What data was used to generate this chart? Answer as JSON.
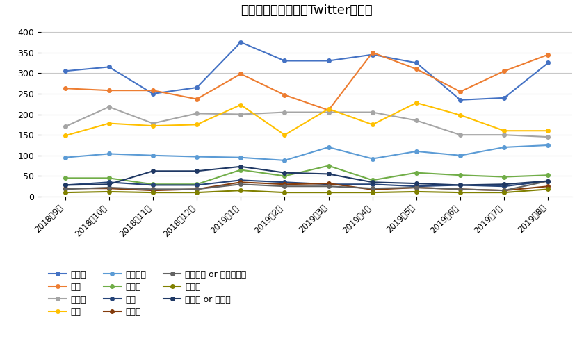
{
  "title": "温泉＋効能に関するTwitter投稿数",
  "x_labels": [
    "2018年9月",
    "2018年10月",
    "2018年11月",
    "2018年12月",
    "2019年1月",
    "2019年2月",
    "2019年3月",
    "2019年4月",
    "2019年5月",
    "2019年6月",
    "2019年7月",
    "2019年8月"
  ],
  "series": [
    {
      "name": "筋肉痛",
      "color": "#4472C4",
      "values": [
        305,
        315,
        250,
        265,
        375,
        330,
        330,
        345,
        325,
        235,
        240,
        325
      ]
    },
    {
      "name": "美肌",
      "color": "#ED7D31",
      "values": [
        263,
        258,
        258,
        237,
        298,
        247,
        210,
        350,
        310,
        255,
        305,
        345
      ]
    },
    {
      "name": "肩こり",
      "color": "#A5A5A5",
      "values": [
        170,
        218,
        178,
        202,
        200,
        205,
        205,
        205,
        185,
        150,
        150,
        145
      ]
    },
    {
      "name": "腰痛",
      "color": "#FFC000",
      "values": [
        148,
        178,
        172,
        175,
        223,
        150,
        213,
        175,
        228,
        198,
        160,
        160
      ]
    },
    {
      "name": "疲労回復",
      "color": "#5B9BD5",
      "values": [
        95,
        104,
        100,
        97,
        95,
        88,
        120,
        92,
        110,
        100,
        120,
        125
      ]
    },
    {
      "name": "肌荒れ",
      "color": "#70AD47",
      "values": [
        45,
        45,
        30,
        30,
        65,
        50,
        75,
        40,
        58,
        52,
        48,
        52
      ]
    },
    {
      "name": "角質",
      "color": "#264478",
      "values": [
        28,
        35,
        28,
        28,
        40,
        35,
        30,
        30,
        25,
        28,
        25,
        38
      ]
    },
    {
      "name": "神経痛",
      "color": "#843C0C",
      "values": [
        20,
        20,
        15,
        18,
        35,
        30,
        32,
        17,
        22,
        18,
        15,
        25
      ]
    },
    {
      "name": "リウマチ or リュウマチ",
      "color": "#636363",
      "values": [
        18,
        22,
        18,
        18,
        30,
        25,
        25,
        20,
        22,
        18,
        15,
        38
      ]
    },
    {
      "name": "関節痛",
      "color": "#808000",
      "values": [
        10,
        12,
        10,
        10,
        15,
        10,
        10,
        10,
        12,
        10,
        10,
        18
      ]
    },
    {
      "name": "冷え性 or 冷え症",
      "color": "#1F3864",
      "values": [
        28,
        30,
        62,
        62,
        73,
        58,
        55,
        35,
        32,
        28,
        30,
        38
      ]
    }
  ],
  "ylim": [
    0,
    420
  ],
  "yticks": [
    0,
    50,
    100,
    150,
    200,
    250,
    300,
    350,
    400
  ],
  "background_color": "#FFFFFF",
  "grid_color": "#C8C8C8",
  "title_fontsize": 13
}
